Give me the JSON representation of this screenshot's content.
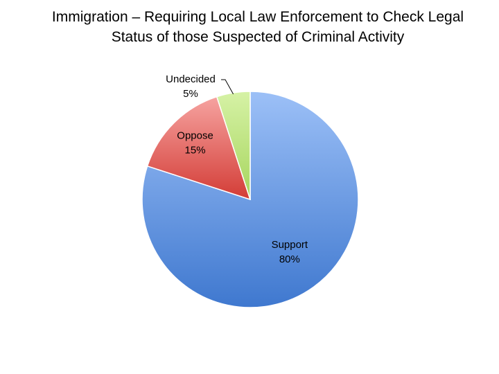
{
  "chart_data": {
    "type": "pie",
    "title_lines": [
      "Immigration – Requiring Local Law Enforcement to Check Legal",
      "Status of those Suspected of Criminal Activity"
    ],
    "slices": [
      {
        "name": "Support",
        "value": 80,
        "label": "80%",
        "color": "#5b8fdc"
      },
      {
        "name": "Oppose",
        "value": 15,
        "label": "15%",
        "color": "#e05a55"
      },
      {
        "name": "Undecided",
        "value": 5,
        "label": "5%",
        "color": "#b7e070"
      }
    ],
    "start": "12 o'clock, clockwise"
  }
}
